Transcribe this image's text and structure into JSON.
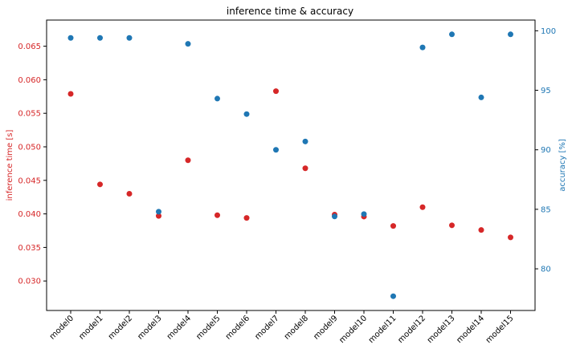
{
  "chart_data": {
    "type": "scatter",
    "title": "inference time & accuracy",
    "categories": [
      "model0",
      "model1",
      "model2",
      "model3",
      "model4",
      "model5",
      "model6",
      "model7",
      "model8",
      "model9",
      "model10",
      "model11",
      "model12",
      "model13",
      "model14",
      "model15"
    ],
    "series": [
      {
        "axis": "left",
        "color": "#d62728",
        "values": [
          0.0579,
          0.0444,
          0.043,
          0.0397,
          0.048,
          0.0398,
          0.0394,
          0.0583,
          0.0468,
          0.0399,
          0.0396,
          0.0382,
          0.041,
          0.0383,
          0.0376,
          0.0365
        ]
      },
      {
        "axis": "right",
        "color": "#1f77b4",
        "values": [
          99.4,
          99.4,
          99.4,
          84.8,
          98.9,
          94.3,
          93.0,
          90.0,
          90.7,
          84.4,
          84.6,
          77.7,
          98.6,
          99.7,
          94.4,
          99.7
        ]
      }
    ],
    "y_left": {
      "label": "inference time [s]",
      "color": "#d62728",
      "ticks": [
        "0.030",
        "0.035",
        "0.040",
        "0.045",
        "0.050",
        "0.055",
        "0.060",
        "0.065"
      ],
      "tick_values": [
        0.03,
        0.035,
        0.04,
        0.045,
        0.05,
        0.055,
        0.06,
        0.065
      ],
      "ylim": [
        0.0256,
        0.0689
      ]
    },
    "y_right": {
      "label": "accuracy [%]",
      "color": "#1f77b4",
      "ticks": [
        "80",
        "85",
        "90",
        "95",
        "100"
      ],
      "tick_values": [
        80,
        85,
        90,
        95,
        100
      ],
      "ylim": [
        76.5,
        100.9
      ]
    },
    "grid": false,
    "legend": "none"
  }
}
